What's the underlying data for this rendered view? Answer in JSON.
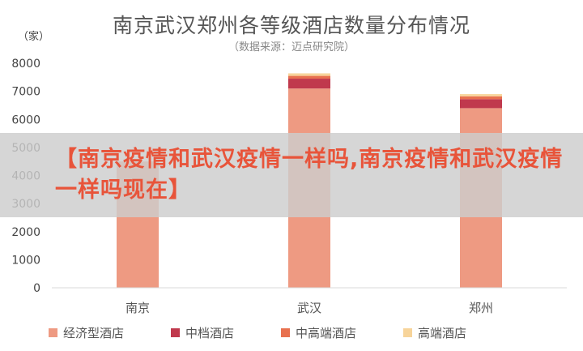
{
  "header": {
    "title": "南京武汉郑州各等级酒店数量分布情况",
    "subtitle": "（数据来源：迈点研究院）",
    "unit": "（家）"
  },
  "banner": {
    "text": "【南京疫情和武汉疫情一样吗,南京疫情和武汉疫情一样吗现在】"
  },
  "chart_data": {
    "type": "bar",
    "stacked": true,
    "categories": [
      "南京",
      "武汉",
      "郑州"
    ],
    "series": [
      {
        "name": "经济型酒店",
        "color": "#ee9a82",
        "values": [
          4500,
          7100,
          6400
        ]
      },
      {
        "name": "中档酒店",
        "color": "#c0394d",
        "values": [
          0,
          350,
          320
        ]
      },
      {
        "name": "中高端酒店",
        "color": "#e8714f",
        "values": [
          0,
          100,
          100
        ]
      },
      {
        "name": "高端酒店",
        "color": "#f7d49a",
        "values": [
          0,
          90,
          80
        ]
      }
    ],
    "yticks": [
      0,
      1000,
      2000,
      3000,
      4000,
      5000,
      6000,
      7000,
      8000
    ],
    "ylim": [
      0,
      8000
    ],
    "grid": false,
    "legend": "bottom"
  }
}
